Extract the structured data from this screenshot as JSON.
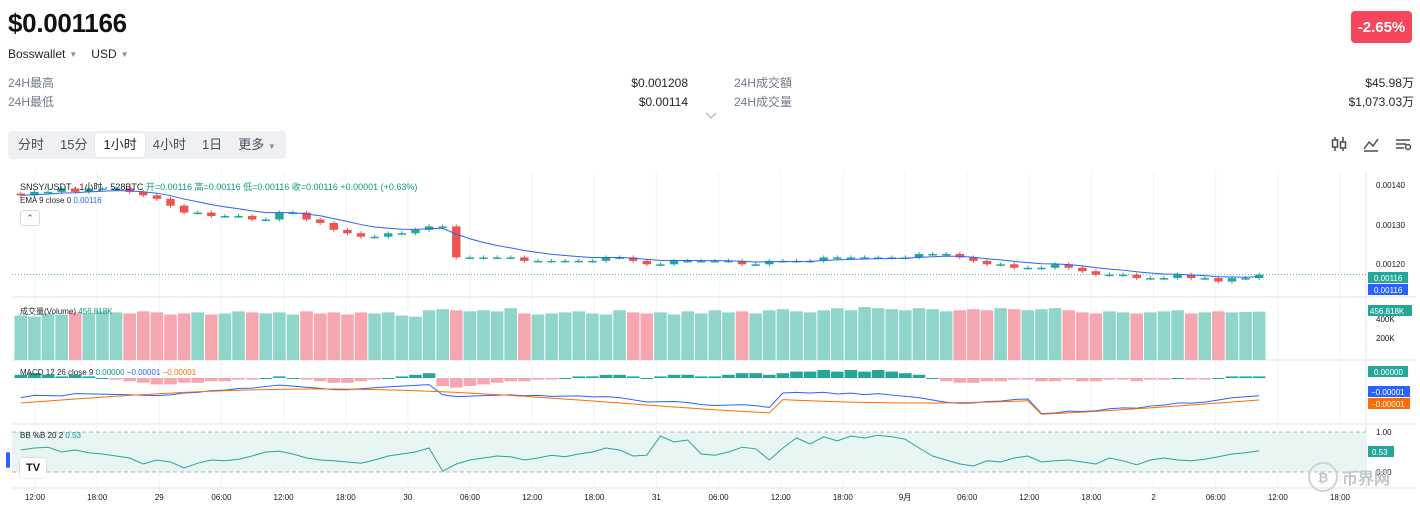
{
  "header": {
    "price": "$0.001166",
    "change": "-2.65%",
    "exchange": "Bosswallet",
    "currency": "USD"
  },
  "stats": {
    "left": [
      {
        "label": "24H最高",
        "value": "$0.001208"
      },
      {
        "label": "24H最低",
        "value": "$0.00114"
      }
    ],
    "right": [
      {
        "label": "24H成交額",
        "value": "$45.98万"
      },
      {
        "label": "24H成交量",
        "value": "$1,073.03万"
      }
    ]
  },
  "timeframes": [
    "分时",
    "15分",
    "1小时",
    "4小时",
    "1日",
    "更多"
  ],
  "active_timeframe": "1小时",
  "chart_header": {
    "symbol": "SNSY/USDT · 1小时 · 528BTC",
    "ohlc": "开=0.00116 高=0.00116 低=0.00116 收=0.00116 +0.00001 (+0.63%)",
    "ema_label": "EMA 9 close 0",
    "ema_value": "0.00116",
    "volume_label": "成交量(Volume)",
    "volume_value": "456.818K",
    "macd_label": "MACD 12 26 close 9",
    "macd_hist": "0.00000",
    "macd_line": "−0.00001",
    "macd_signal": "−0.00001",
    "bb_label": "BB %B 20 2",
    "bb_value": "0.53"
  },
  "axes": {
    "price_ticks": [
      "0.00140",
      "0.00130",
      "0.00120"
    ],
    "last_price_tag": "0.00116",
    "ema_tag": "0.00116",
    "volume_ticks": [
      "400K",
      "200K"
    ],
    "volume_tag": "456.818K",
    "macd_tags": [
      "0.00000",
      "−0.00001",
      "−0.00001"
    ],
    "bb_ticks": [
      "1.00",
      "0.00"
    ],
    "bb_tag": "0.53",
    "time_labels": [
      "12:00",
      "18:00",
      "29",
      "06:00",
      "12:00",
      "18:00",
      "30",
      "06:00",
      "12:00",
      "18:00",
      "31",
      "06:00",
      "12:00",
      "18:00",
      "9月",
      "06:00",
      "12:00",
      "18:00",
      "2",
      "06:00",
      "12:00",
      "18:00"
    ]
  },
  "watermark": "币界网",
  "colors": {
    "up": "#26a69a",
    "down": "#ef5350",
    "badge": "#f6465d",
    "ema": "#2962ff",
    "signal": "#ff6d00"
  },
  "chart_data": {
    "type": "candlestick",
    "title": "SNSY/USDT · 1小时 · 528BTC",
    "ylim": [
      0.00113,
      0.00142
    ],
    "close": [
      0.00139,
      0.0014,
      0.0014,
      0.00141,
      0.0014,
      0.00141,
      0.00141,
      0.00141,
      0.0014,
      0.00139,
      0.00138,
      0.00136,
      0.00134,
      0.00134,
      0.00133,
      0.00133,
      0.00133,
      0.00132,
      0.00132,
      0.00134,
      0.00134,
      0.00132,
      0.00131,
      0.00129,
      0.00128,
      0.00127,
      0.00127,
      0.00128,
      0.00128,
      0.00129,
      0.0013,
      0.0013,
      0.00121,
      0.00121,
      0.00121,
      0.00121,
      0.00121,
      0.0012,
      0.0012,
      0.0012,
      0.0012,
      0.0012,
      0.0012,
      0.00121,
      0.00121,
      0.0012,
      0.00119,
      0.00119,
      0.0012,
      0.0012,
      0.0012,
      0.0012,
      0.0012,
      0.00119,
      0.00119,
      0.0012,
      0.0012,
      0.0012,
      0.0012,
      0.00121,
      0.00121,
      0.00121,
      0.00121,
      0.00121,
      0.00121,
      0.00121,
      0.00122,
      0.00122,
      0.00122,
      0.00121,
      0.0012,
      0.00119,
      0.00119,
      0.00118,
      0.00118,
      0.00118,
      0.00119,
      0.00118,
      0.00117,
      0.00116,
      0.00116,
      0.00116,
      0.00115,
      0.00115,
      0.00115,
      0.00116,
      0.00115,
      0.00115,
      0.00114,
      0.00115,
      0.00115,
      0.00116
    ],
    "direction": [
      1,
      1,
      1,
      0,
      1,
      0,
      0,
      0,
      0,
      0,
      0,
      0,
      0,
      0,
      0,
      0,
      0,
      0,
      1,
      1,
      0,
      0,
      0,
      0,
      0,
      0,
      1,
      1,
      1,
      1,
      1,
      0,
      0,
      1,
      0,
      1,
      0,
      0,
      1,
      0,
      1,
      1,
      1,
      1,
      0,
      0,
      0,
      1,
      1,
      0,
      1,
      0,
      1,
      0,
      1,
      1,
      1,
      0,
      1,
      1,
      0,
      1,
      0,
      1,
      1,
      1,
      1,
      0,
      0,
      0,
      0,
      0,
      0,
      0,
      1,
      0,
      1,
      0,
      0,
      0,
      1,
      0,
      0,
      0,
      0,
      1,
      0,
      0,
      0,
      1,
      1,
      1
    ],
    "volume": [
      420,
      410,
      440,
      430,
      450,
      440,
      460,
      450,
      440,
      460,
      450,
      430,
      440,
      450,
      430,
      440,
      460,
      450,
      440,
      450,
      430,
      460,
      440,
      450,
      430,
      450,
      440,
      450,
      420,
      410,
      470,
      480,
      470,
      460,
      470,
      460,
      490,
      440,
      430,
      440,
      450,
      460,
      440,
      430,
      470,
      450,
      440,
      450,
      430,
      460,
      440,
      470,
      450,
      460,
      440,
      470,
      480,
      460,
      450,
      470,
      490,
      470,
      500,
      490,
      480,
      470,
      490,
      480,
      460,
      470,
      480,
      470,
      490,
      480,
      470,
      480,
      490,
      470,
      450,
      440,
      460,
      450,
      440,
      450,
      460,
      470,
      440,
      450,
      460,
      450,
      455,
      457
    ],
    "bb_percent": [
      0.55,
      0.6,
      0.62,
      0.5,
      0.55,
      0.48,
      0.45,
      0.4,
      0.35,
      0.2,
      0.3,
      0.25,
      0.1,
      0.22,
      0.3,
      0.28,
      0.32,
      0.4,
      0.5,
      0.52,
      0.45,
      0.35,
      0.3,
      0.28,
      0.25,
      0.22,
      0.3,
      0.4,
      0.45,
      0.5,
      0.6,
      0.02,
      0.2,
      0.3,
      0.35,
      0.4,
      0.38,
      0.3,
      0.35,
      0.42,
      0.38,
      0.45,
      0.5,
      0.6,
      0.55,
      0.4,
      0.42,
      0.9,
      0.75,
      0.8,
      0.45,
      0.42,
      0.5,
      0.62,
      0.58,
      0.3,
      0.6,
      0.85,
      0.7,
      0.88,
      0.78,
      0.9,
      0.85,
      0.92,
      0.88,
      0.82,
      0.6,
      0.4,
      0.3,
      0.2,
      0.15,
      0.28,
      0.25,
      0.35,
      0.4,
      0.25,
      0.28,
      0.3,
      0.25,
      0.2,
      0.35,
      0.28,
      0.18,
      0.3,
      0.35,
      0.3,
      0.28,
      0.32,
      0.38,
      0.45,
      0.48,
      0.53
    ],
    "macd_hist": [
      2,
      3,
      2,
      1,
      2,
      1,
      0,
      -1,
      -2,
      -3,
      -4,
      -4,
      -3,
      -3,
      -2,
      -2,
      -1,
      -1,
      0,
      1,
      0,
      -1,
      -2,
      -3,
      -3,
      -2,
      -1,
      0,
      1,
      2,
      3,
      -5,
      -6,
      -5,
      -4,
      -3,
      -2,
      -2,
      -1,
      -1,
      0,
      1,
      1,
      2,
      2,
      1,
      0,
      1,
      2,
      2,
      1,
      1,
      2,
      3,
      3,
      2,
      3,
      4,
      4,
      5,
      4,
      5,
      4,
      5,
      4,
      3,
      2,
      0,
      -2,
      -3,
      -3,
      -2,
      -2,
      -1,
      -1,
      -2,
      -2,
      -1,
      -2,
      -2,
      -1,
      -1,
      -2,
      -1,
      -1,
      0,
      -1,
      -1,
      0,
      1,
      1,
      1
    ]
  }
}
